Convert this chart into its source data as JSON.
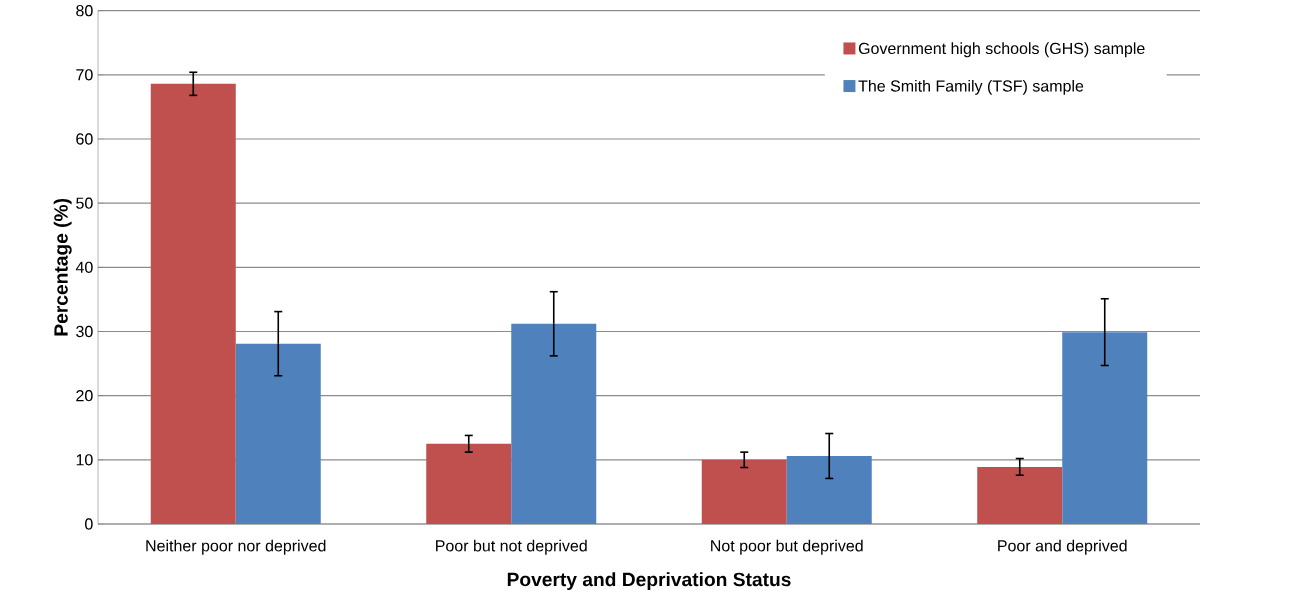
{
  "chart_data": {
    "type": "bar",
    "xlabel": "Poverty and Deprivation Status",
    "ylabel": "Percentage (%)",
    "categories": [
      "Neither poor nor deprived",
      "Poor but not deprived",
      "Not poor but deprived",
      "Poor and deprived"
    ],
    "series": [
      {
        "name": "Government high schools (GHS) sample",
        "color": "#c0504d",
        "values": [
          68.6,
          12.5,
          10.0,
          8.9
        ],
        "errors": [
          1.8,
          1.3,
          1.2,
          1.3
        ]
      },
      {
        "name": "The Smith Family (TSF) sample",
        "color": "#4f81bd",
        "values": [
          28.1,
          31.2,
          10.6,
          29.9
        ],
        "errors": [
          5.0,
          5.0,
          3.5,
          5.2
        ]
      }
    ],
    "ylim": [
      0,
      80
    ],
    "yticks": [
      0,
      10,
      20,
      30,
      40,
      50,
      60,
      70,
      80
    ],
    "grid": "y",
    "legend": "top right"
  }
}
